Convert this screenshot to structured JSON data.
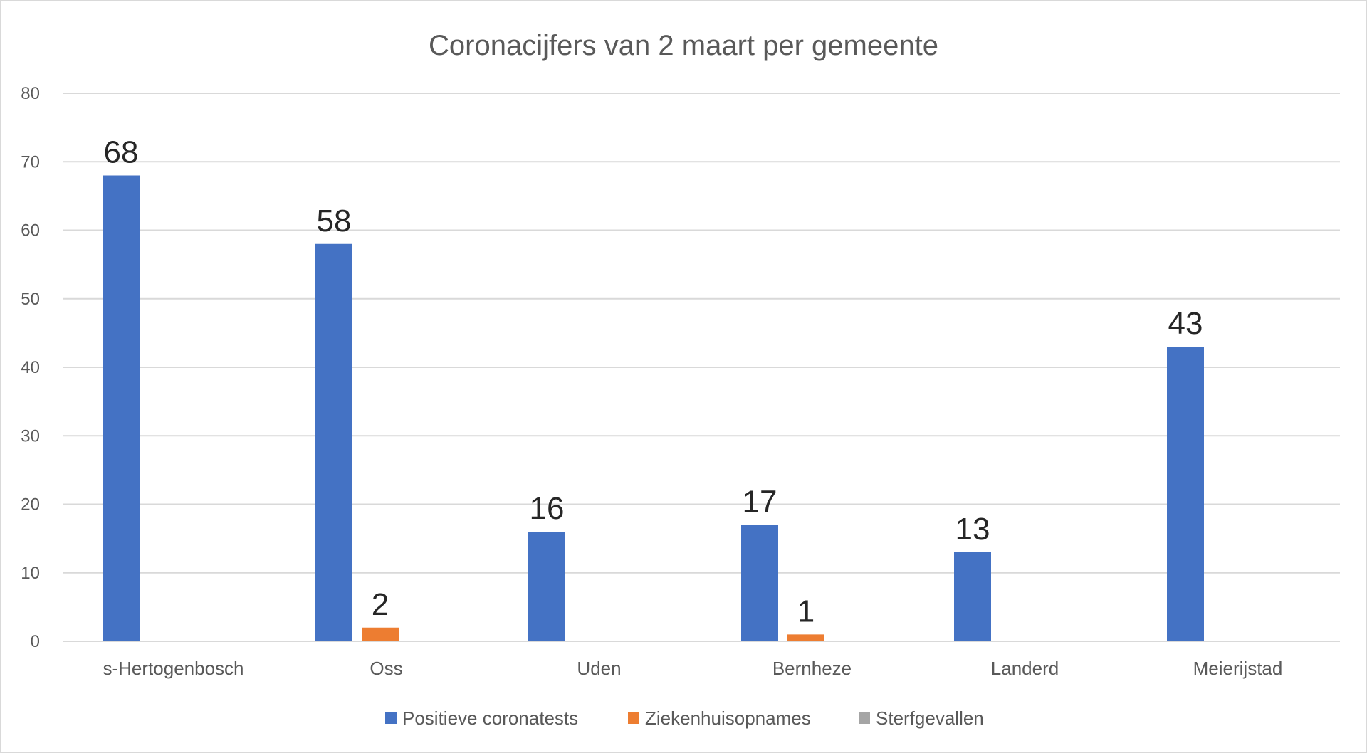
{
  "chart_data": {
    "type": "bar",
    "title": "Coronacijfers van 2 maart per gemeente",
    "categories": [
      "s-Hertogenbosch",
      "Oss",
      "Uden",
      "Bernheze",
      "Landerd",
      "Meierijstad"
    ],
    "series": [
      {
        "name": "Positieve coronatests",
        "color": "#4472c4",
        "values": [
          68,
          58,
          16,
          17,
          13,
          43
        ],
        "labels": [
          "68",
          "58",
          "16",
          "17",
          "13",
          "43"
        ]
      },
      {
        "name": "Ziekenhuisopnames",
        "color": "#ed7d31",
        "values": [
          0,
          2,
          0,
          1,
          0,
          0
        ],
        "labels": [
          "",
          "2",
          "",
          "1",
          "",
          ""
        ]
      },
      {
        "name": "Sterfgevallen",
        "color": "#a5a5a5",
        "values": [
          0,
          0,
          0,
          0,
          0,
          0
        ],
        "labels": [
          "",
          "",
          "",
          "",
          "",
          ""
        ]
      }
    ],
    "yticks": [
      "0",
      "10",
      "20",
      "30",
      "40",
      "50",
      "60",
      "70",
      "80"
    ],
    "ylim": [
      0,
      80
    ],
    "grid": true,
    "legend_position": "bottom"
  }
}
